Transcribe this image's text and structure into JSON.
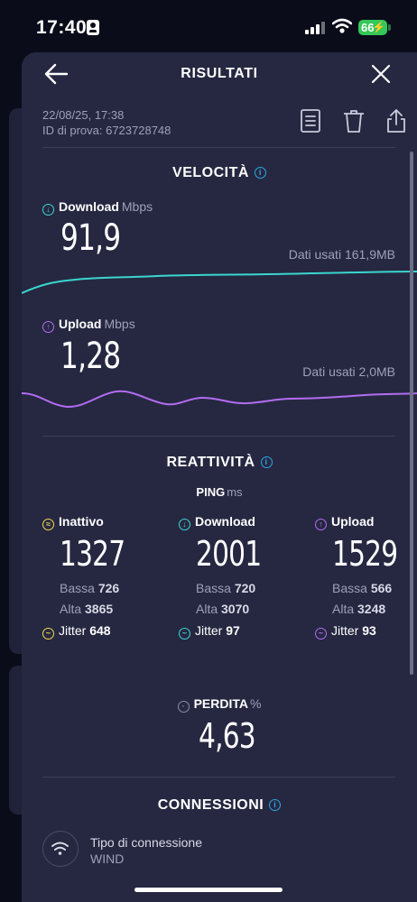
{
  "status_bar": {
    "time": "17:40",
    "battery": "66"
  },
  "header": {
    "title": "RISULTATI",
    "back_icon": "arrow-left-icon",
    "close_icon": "close-icon"
  },
  "meta": {
    "date": "22/08/25, 17:38",
    "test_id": "ID di prova: 6723728748"
  },
  "actions": [
    "list-icon",
    "trash-icon",
    "share-icon"
  ],
  "speed": {
    "title": "VELOCITÀ",
    "download": {
      "label": "Download",
      "unit": "Mbps",
      "value": "91,9",
      "data_used": "Dati usati 161,9MB",
      "color": "#3ad6d0"
    },
    "upload": {
      "label": "Upload",
      "unit": "Mbps",
      "value": "1,28",
      "data_used": "Dati usati 2,0MB",
      "color": "#b36cf2"
    }
  },
  "responsiveness": {
    "title": "REATTIVITÀ",
    "ping_label": "PING",
    "ping_unit": "ms",
    "columns": [
      {
        "label": "Inattivo",
        "value": "1327",
        "low_label": "Bassa",
        "low": "726",
        "high_label": "Alta",
        "high": "3865",
        "jitter_label": "Jitter",
        "jitter": "648",
        "color": "#f2d74f"
      },
      {
        "label": "Download",
        "value": "2001",
        "low_label": "Bassa",
        "low": "720",
        "high_label": "Alta",
        "high": "3070",
        "jitter_label": "Jitter",
        "jitter": "97",
        "color": "#3ad6d0"
      },
      {
        "label": "Upload",
        "value": "1529",
        "low_label": "Bassa",
        "low": "566",
        "high_label": "Alta",
        "high": "3248",
        "jitter_label": "Jitter",
        "jitter": "93",
        "color": "#b36cf2"
      }
    ]
  },
  "loss": {
    "label": "PERDITA",
    "unit": "%",
    "value": "4,63"
  },
  "connections": {
    "title": "CONNESSIONI",
    "type_label": "Tipo di connessione",
    "type_value": "WIND",
    "icon": "wifi-icon"
  }
}
